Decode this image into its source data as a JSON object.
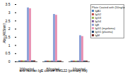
{
  "chart_data": {
    "type": "bar",
    "xlabel": "anti-human IgE clone# RM122 (primary Ab)",
    "ylabel": "Abs (405nm)",
    "legend_title": "Plate Coated with (50ng/well)",
    "categories": [
      "200ng/mL",
      "50ng/mL",
      "10ng/mL"
    ],
    "series": [
      {
        "name": "IgA1",
        "color": "#4f81bd",
        "values": [
          0.06,
          0.05,
          0.05
        ]
      },
      {
        "name": "IgG2",
        "color": "#c0504d",
        "values": [
          0.06,
          0.05,
          0.05
        ]
      },
      {
        "name": "IgG3",
        "color": "#9bbb59",
        "values": [
          0.06,
          0.05,
          0.05
        ]
      },
      {
        "name": "IgG4",
        "color": "#8064a2",
        "values": [
          0.06,
          0.05,
          0.05
        ]
      },
      {
        "name": "IgE",
        "color": "#8fa3d8",
        "values": [
          3.3,
          2.9,
          1.6
        ]
      },
      {
        "name": "IgG1 (myeloma)",
        "color": "#e994b4",
        "values": [
          3.25,
          2.85,
          1.55
        ]
      },
      {
        "name": "IgG1 (plasma)",
        "color": "#2c4d75",
        "values": [
          0.06,
          0.05,
          0.05
        ]
      },
      {
        "name": "IgM",
        "color": "#772c2a",
        "values": [
          0.06,
          0.05,
          0.05
        ]
      }
    ],
    "ylim": [
      0,
      3.5
    ],
    "yticks": [
      0,
      0.5,
      1,
      1.5,
      2,
      2.5,
      3,
      3.5
    ],
    "grid": false,
    "legend": "right"
  }
}
